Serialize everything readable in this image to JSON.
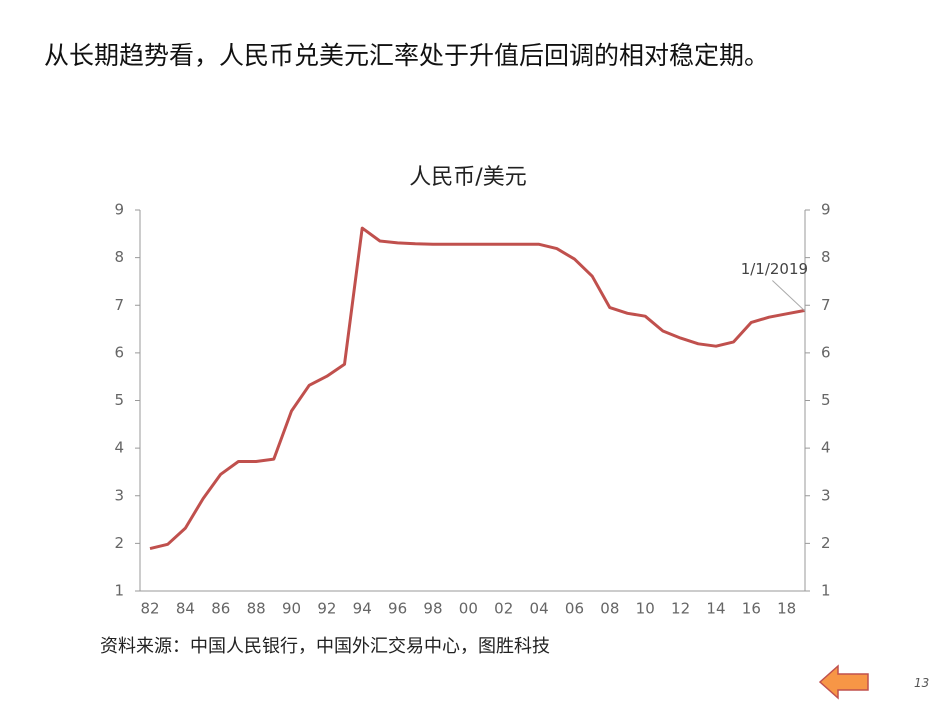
{
  "header": {
    "title": "从长期趋势看，人民币兑美元汇率处于升值后回调的相对稳定期。"
  },
  "chart_data": {
    "type": "line",
    "title": "人民币/美元",
    "categories": [
      "82",
      null,
      "84",
      null,
      "86",
      null,
      "88",
      null,
      "90",
      null,
      "92",
      null,
      "94",
      null,
      "96",
      null,
      "98",
      null,
      "00",
      null,
      "02",
      null,
      "04",
      null,
      "06",
      null,
      "08",
      null,
      "10",
      null,
      "12",
      null,
      "14",
      null,
      "16",
      null,
      "18",
      null
    ],
    "values": [
      1.89,
      1.98,
      2.32,
      2.94,
      3.45,
      3.72,
      3.72,
      3.77,
      4.78,
      5.32,
      5.51,
      5.76,
      8.62,
      8.35,
      8.31,
      8.29,
      8.28,
      8.28,
      8.28,
      8.28,
      8.28,
      8.28,
      8.28,
      8.19,
      7.97,
      7.61,
      6.95,
      6.83,
      6.77,
      6.46,
      6.31,
      6.19,
      6.14,
      6.23,
      6.64,
      6.75,
      6.82,
      6.89
    ],
    "color": "#c0504d",
    "ylim": [
      1,
      9
    ],
    "yticks": [
      1,
      2,
      3,
      4,
      5,
      6,
      7,
      8,
      9
    ],
    "y2lim": [
      1,
      9
    ],
    "y2ticks": [
      1,
      2,
      3,
      4,
      5,
      6,
      7,
      8,
      9
    ],
    "annotation": "1/1/2019"
  },
  "footer": {
    "source": "资料来源：中国人民银行，中国外汇交易中心，图胜科技",
    "page_number": "13"
  }
}
